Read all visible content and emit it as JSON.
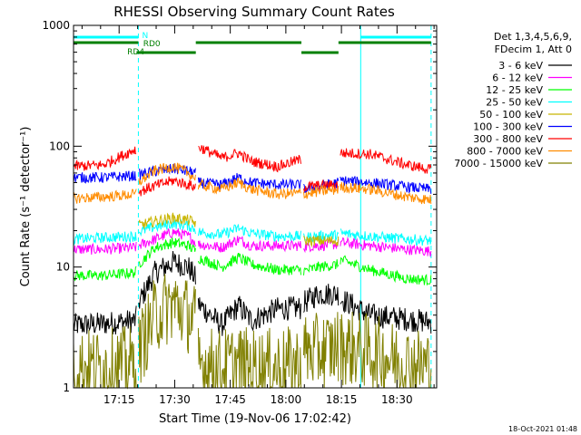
{
  "chart_data": {
    "type": "line",
    "title": "RHESSI Observing Summary Count Rates",
    "xlabel": "Start Time (19-Nov-06 17:02:42)",
    "ylabel": "Count Rate (s⁻¹ detector⁻¹)",
    "yscale": "log",
    "ylim": [
      1,
      1000
    ],
    "xlim_minutes_after_start": [
      0,
      98
    ],
    "x_tick_labels": [
      "17:15",
      "17:30",
      "17:45",
      "18:00",
      "18:15",
      "18:30"
    ],
    "x_tick_minutes": [
      12.3,
      27.3,
      42.3,
      57.3,
      72.3,
      87.3
    ],
    "y_tick_labels": [
      "1",
      "10",
      "100",
      "1000"
    ],
    "y_tick_values": [
      1,
      10,
      100,
      1000
    ],
    "legend_header": [
      "Det 1,3,4,5,6,9,",
      "FDecim 1, Att 0"
    ],
    "legend_position": "right",
    "timestamp": "18-Oct-2021 01:48",
    "flag_labels": [
      "N",
      "RD0",
      "RD4"
    ],
    "vlines": [
      {
        "minute": 17.5,
        "color": "#00ffff",
        "style": "dashed"
      },
      {
        "minute": 77.5,
        "color": "#00ffff",
        "style": "solid"
      },
      {
        "minute": 96.5,
        "color": "#00ffff",
        "style": "dashed"
      }
    ],
    "flag_bars": [
      {
        "label": "N",
        "color": "#00ffff",
        "row": 1,
        "segments": [
          [
            0,
            17.5
          ],
          [
            77.5,
            96.5
          ]
        ]
      },
      {
        "label": "RD0",
        "color": "#008000",
        "row": 2,
        "segments": [
          [
            0,
            17.5
          ],
          [
            33,
            61.5
          ],
          [
            71.5,
            96.5
          ]
        ]
      },
      {
        "label": "RD4",
        "color": "#008000",
        "row": 3,
        "segments": [
          [
            17,
            33
          ],
          [
            61.5,
            71.5
          ]
        ]
      }
    ],
    "gaps": [
      [
        17,
        17.5
      ],
      [
        33,
        33.5
      ],
      [
        61.5,
        62
      ],
      [
        71.5,
        72
      ]
    ],
    "time_knots": [
      0,
      8,
      16.8,
      17.5,
      22,
      27,
      31,
      33,
      33.5,
      40,
      44.5,
      48,
      55,
      61.5,
      62,
      66,
      71.5,
      72,
      80,
      90,
      96.5
    ],
    "series": [
      {
        "name": "3 - 6 keV",
        "color": "#000000",
        "values": [
          3.3,
          3.4,
          3.6,
          5.0,
          9.0,
          11.0,
          10.0,
          8.0,
          5.0,
          3.3,
          4.8,
          3.6,
          4.5,
          4.6,
          5.0,
          6.0,
          6.0,
          5.5,
          4.0,
          3.7,
          3.5
        ]
      },
      {
        "name": "6 - 12 keV",
        "color": "#ff00ff",
        "values": [
          14.0,
          14.0,
          14.5,
          15.0,
          17.0,
          19.5,
          18.0,
          16.0,
          15.5,
          14.5,
          17.0,
          15.0,
          15.0,
          15.0,
          14.8,
          15.0,
          15.5,
          16.0,
          15.0,
          14.0,
          13.5
        ]
      },
      {
        "name": "12 - 25 keV",
        "color": "#00ff00",
        "values": [
          8.5,
          8.5,
          9.0,
          10.5,
          14.5,
          16.0,
          15.0,
          13.5,
          12.0,
          10.0,
          12.0,
          10.5,
          9.5,
          9.5,
          9.2,
          10.0,
          10.5,
          11.5,
          9.5,
          8.0,
          7.8
        ]
      },
      {
        "name": "25 - 50 keV",
        "color": "#00ffff",
        "values": [
          17.0,
          17.5,
          18.0,
          19.5,
          21.5,
          23.0,
          22.0,
          20.5,
          19.5,
          18.5,
          21.0,
          19.0,
          18.0,
          18.0,
          17.5,
          18.0,
          18.5,
          19.0,
          18.0,
          17.0,
          16.5
        ]
      },
      {
        "name": "50 - 100 keV",
        "color": "#c8b400",
        "values": [
          null,
          null,
          null,
          22.0,
          24.0,
          25.5,
          24.5,
          23.0,
          null,
          null,
          null,
          null,
          null,
          null,
          16.5,
          16.5,
          16.5,
          null,
          null,
          null,
          null
        ]
      },
      {
        "name": "100 - 300 keV",
        "color": "#0000ff",
        "values": [
          55.0,
          55.0,
          57.0,
          58.0,
          62.0,
          65.0,
          62.0,
          60.0,
          50.0,
          48.0,
          55.0,
          50.0,
          48.0,
          48.0,
          44.0,
          46.0,
          50.0,
          52.0,
          50.0,
          46.0,
          44.0
        ]
      },
      {
        "name": "300 - 800 keV",
        "color": "#ff0000",
        "values": [
          68.0,
          70.0,
          95.0,
          42.0,
          47.0,
          52.0,
          48.0,
          46.0,
          100.0,
          80.0,
          88.0,
          75.0,
          68.0,
          78.0,
          46.0,
          47.0,
          48.0,
          88.0,
          86.0,
          70.0,
          64.0
        ]
      },
      {
        "name": "800 - 7000 keV",
        "color": "#ff8c00",
        "values": [
          37.0,
          38.0,
          40.0,
          50.0,
          63.0,
          68.0,
          60.0,
          54.0,
          48.0,
          44.0,
          50.0,
          44.0,
          40.0,
          41.0,
          40.0,
          42.0,
          44.0,
          46.0,
          44.0,
          38.0,
          36.0
        ]
      },
      {
        "name": "7000 - 15000 keV",
        "color": "#808000",
        "values": [
          1.5,
          1.5,
          1.6,
          2.0,
          4.0,
          5.0,
          4.0,
          3.5,
          1.6,
          1.5,
          1.6,
          1.5,
          1.5,
          1.6,
          2.0,
          2.0,
          2.2,
          2.2,
          2.0,
          1.6,
          1.5
        ]
      }
    ]
  }
}
